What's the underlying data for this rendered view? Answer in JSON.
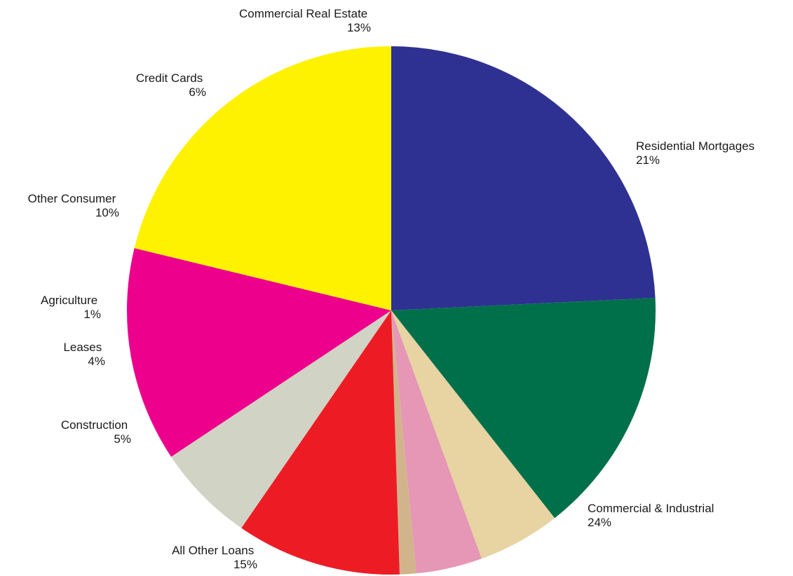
{
  "chart_data": {
    "type": "pie",
    "title": "",
    "start_angle_deg": 90,
    "direction": "clockwise",
    "slices": [
      {
        "label": "Commercial & Industrial",
        "value": 24,
        "value_label": "24%",
        "color": "#2E3192"
      },
      {
        "label": "All Other Loans",
        "value": 15,
        "value_label": "15%",
        "color": "#00704A"
      },
      {
        "label": "Construction",
        "value": 5,
        "value_label": "5%",
        "color": "#E8D3A2"
      },
      {
        "label": "Leases",
        "value": 4,
        "value_label": "4%",
        "color": "#E597B5"
      },
      {
        "label": "Agriculture",
        "value": 1,
        "value_label": "1%",
        "color": "#D2B48C"
      },
      {
        "label": "Other Consumer",
        "value": 10,
        "value_label": "10%",
        "color": "#ED1C24"
      },
      {
        "label": "Credit Cards",
        "value": 6,
        "value_label": "6%",
        "color": "#D1D3C4"
      },
      {
        "label": "Commercial Real Estate",
        "value": 13,
        "value_label": "13%",
        "color": "#EC008C"
      },
      {
        "label": "Residential Mortgages",
        "value": 21,
        "value_label": "21%",
        "color": "#FFF200"
      }
    ]
  }
}
